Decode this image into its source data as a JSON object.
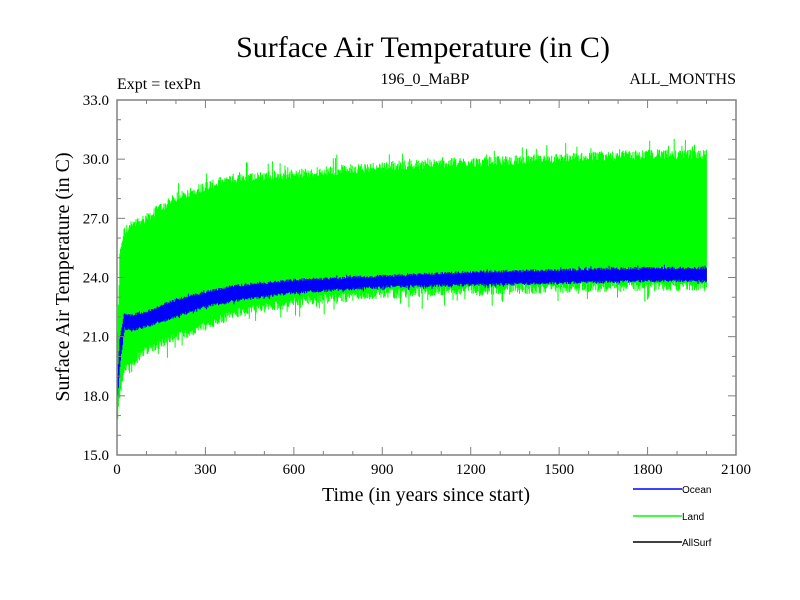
{
  "chart_data": {
    "type": "line",
    "title": "Surface Air Temperature (in C)",
    "subtitle_left": "Expt = texPn",
    "subtitle_center": "196_0_MaBP",
    "subtitle_right": "ALL_MONTHS",
    "xlabel": "Time (in years since start)",
    "ylabel": "Surface Air Temperature (in C)",
    "xlim": [
      0,
      2100
    ],
    "ylim": [
      15.0,
      33.0
    ],
    "x_ticks": [
      "0",
      "300",
      "600",
      "900",
      "1200",
      "1500",
      "1800",
      "2100"
    ],
    "x_tick_values": [
      0,
      300,
      600,
      900,
      1200,
      1500,
      1800,
      2100
    ],
    "y_ticks": [
      "15.0",
      "18.0",
      "21.0",
      "24.0",
      "27.0",
      "30.0",
      "33.0"
    ],
    "y_tick_values": [
      15,
      18,
      21,
      24,
      27,
      30,
      33
    ],
    "grid": false,
    "legend_position": "bottom-right",
    "series": [
      {
        "name": "Land",
        "color": "#00ff00",
        "x": [
          0,
          10,
          25,
          50,
          100,
          200,
          300,
          400,
          600,
          900,
          1200,
          1500,
          1800,
          2000
        ],
        "upper": [
          20.0,
          25.5,
          26.5,
          26.8,
          27.2,
          28.2,
          28.8,
          29.2,
          29.4,
          29.8,
          30.0,
          30.2,
          30.4,
          30.4
        ],
        "lower": [
          16.5,
          18.0,
          19.0,
          19.5,
          20.2,
          20.8,
          21.4,
          22.0,
          22.6,
          23.0,
          23.2,
          23.3,
          23.4,
          23.4
        ]
      },
      {
        "name": "Ocean",
        "color": "#0000ff",
        "x": [
          0,
          10,
          25,
          50,
          100,
          200,
          300,
          400,
          600,
          900,
          1200,
          1500,
          1800,
          2000
        ],
        "upper": [
          18.5,
          21.0,
          22.2,
          22.1,
          22.3,
          22.9,
          23.3,
          23.6,
          23.9,
          24.1,
          24.3,
          24.4,
          24.5,
          24.5
        ],
        "lower": [
          17.5,
          19.5,
          21.4,
          21.3,
          21.5,
          22.0,
          22.5,
          22.8,
          23.2,
          23.5,
          23.6,
          23.7,
          23.8,
          23.8
        ]
      },
      {
        "name": "AllSurf",
        "color": "#000000",
        "x": [],
        "upper": [],
        "lower": []
      }
    ],
    "legend": [
      {
        "label": "Ocean",
        "color": "#0000ff"
      },
      {
        "label": "Land",
        "color": "#00ff00"
      },
      {
        "label": "AllSurf",
        "color": "#000000"
      }
    ]
  }
}
